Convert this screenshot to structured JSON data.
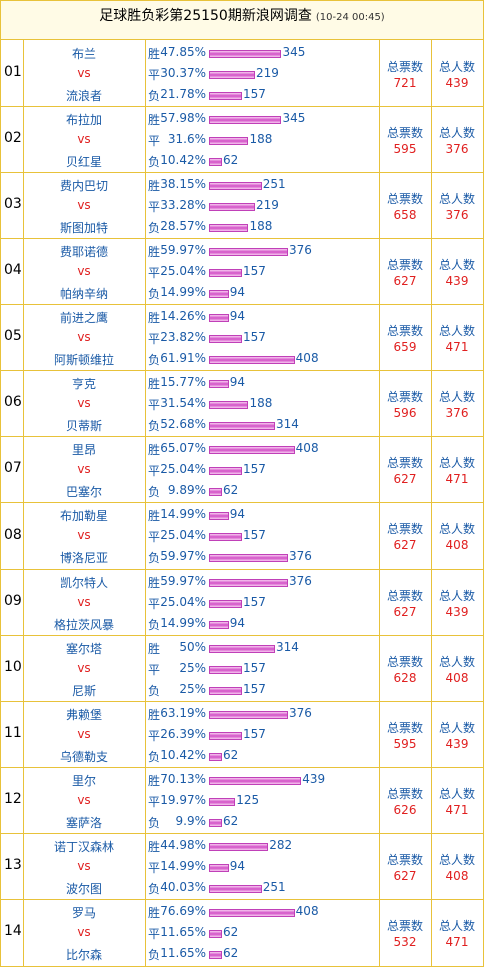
{
  "header": {
    "title": "足球胜负彩第25150期新浪网调查",
    "time": "(10-24 00:45)"
  },
  "outcome_labels": [
    "胜",
    "平",
    "负"
  ],
  "vs": "vs",
  "votes_label": "总票数",
  "people_label": "总人数",
  "rows": [
    {
      "no": "01",
      "home": "布兰",
      "away": "流浪者",
      "pcts": [
        "47.85%",
        "30.37%",
        "21.78%"
      ],
      "counts": [
        345,
        219,
        157
      ],
      "votes": 721,
      "people": 439
    },
    {
      "no": "02",
      "home": "布拉加",
      "away": "贝红星",
      "pcts": [
        "57.98%",
        "31.6%",
        "10.42%"
      ],
      "counts": [
        345,
        188,
        62
      ],
      "votes": 595,
      "people": 376
    },
    {
      "no": "03",
      "home": "费内巴切",
      "away": "斯图加特",
      "pcts": [
        "38.15%",
        "33.28%",
        "28.57%"
      ],
      "counts": [
        251,
        219,
        188
      ],
      "votes": 658,
      "people": 376
    },
    {
      "no": "04",
      "home": "费耶诺德",
      "away": "帕纳辛纳",
      "pcts": [
        "59.97%",
        "25.04%",
        "14.99%"
      ],
      "counts": [
        376,
        157,
        94
      ],
      "votes": 627,
      "people": 439
    },
    {
      "no": "05",
      "home": "前进之鹰",
      "away": "阿斯顿维拉",
      "pcts": [
        "14.26%",
        "23.82%",
        "61.91%"
      ],
      "counts": [
        94,
        157,
        408
      ],
      "votes": 659,
      "people": 471
    },
    {
      "no": "06",
      "home": "亨克",
      "away": "贝蒂斯",
      "pcts": [
        "15.77%",
        "31.54%",
        "52.68%"
      ],
      "counts": [
        94,
        188,
        314
      ],
      "votes": 596,
      "people": 376
    },
    {
      "no": "07",
      "home": "里昂",
      "away": "巴塞尔",
      "pcts": [
        "65.07%",
        "25.04%",
        "9.89%"
      ],
      "counts": [
        408,
        157,
        62
      ],
      "votes": 627,
      "people": 471
    },
    {
      "no": "08",
      "home": "布加勒星",
      "away": "博洛尼亚",
      "pcts": [
        "14.99%",
        "25.04%",
        "59.97%"
      ],
      "counts": [
        94,
        157,
        376
      ],
      "votes": 627,
      "people": 408
    },
    {
      "no": "09",
      "home": "凯尔特人",
      "away": "格拉茨风暴",
      "pcts": [
        "59.97%",
        "25.04%",
        "14.99%"
      ],
      "counts": [
        376,
        157,
        94
      ],
      "votes": 627,
      "people": 439
    },
    {
      "no": "10",
      "home": "塞尔塔",
      "away": "尼斯",
      "pcts": [
        "50%",
        "25%",
        "25%"
      ],
      "counts": [
        314,
        157,
        157
      ],
      "votes": 628,
      "people": 408
    },
    {
      "no": "11",
      "home": "弗赖堡",
      "away": "乌德勒支",
      "pcts": [
        "63.19%",
        "26.39%",
        "10.42%"
      ],
      "counts": [
        376,
        157,
        62
      ],
      "votes": 595,
      "people": 439
    },
    {
      "no": "12",
      "home": "里尔",
      "away": "塞萨洛",
      "pcts": [
        "70.13%",
        "19.97%",
        "9.9%"
      ],
      "counts": [
        439,
        125,
        62
      ],
      "votes": 626,
      "people": 471
    },
    {
      "no": "13",
      "home": "诺丁汉森林",
      "away": "波尔图",
      "pcts": [
        "44.98%",
        "14.99%",
        "40.03%"
      ],
      "counts": [
        282,
        94,
        251
      ],
      "votes": 627,
      "people": 408
    },
    {
      "no": "14",
      "home": "罗马",
      "away": "比尔森",
      "pcts": [
        "76.69%",
        "11.65%",
        "11.65%"
      ],
      "counts": [
        408,
        62,
        62
      ],
      "votes": 532,
      "people": 471
    }
  ]
}
